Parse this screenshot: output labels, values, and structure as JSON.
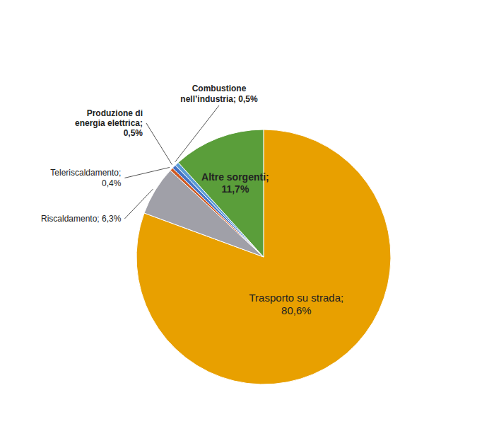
{
  "chart_data": {
    "type": "pie",
    "values": [
      80.6,
      6.3,
      0.4,
      0.5,
      0.5,
      11.7
    ],
    "colors": [
      "#E8A000",
      "#A0A0A8",
      "#D05820",
      "#4472C4",
      "#5B9BD5",
      "#5A9E3A"
    ],
    "data_labels": true,
    "value_labels": [
      "Trasporto su strada;\n80,6%",
      "Riscaldamento; 6,3%",
      "Teleriscaldamento;\n0,4%",
      "Produzione di\nenergia elettrica;\n0,5%",
      "Combustione\nnell’industria; 0,5%",
      "Altre sorgenti;\n11,7%"
    ]
  }
}
